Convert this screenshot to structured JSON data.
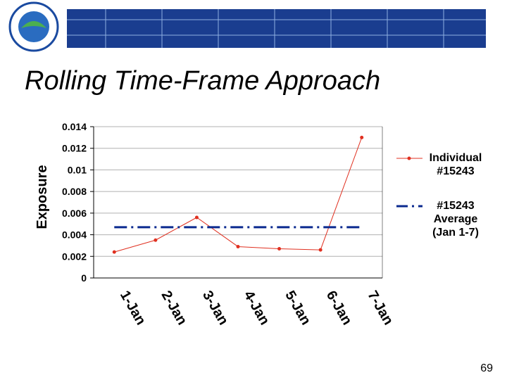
{
  "chart_data": {
    "type": "line",
    "title": "Rolling Time-Frame Approach",
    "y_label": "Exposure",
    "page_number": "69",
    "categories": [
      "1-Jan",
      "2-Jan",
      "3-Jan",
      "4-Jan",
      "5-Jan",
      "6-Jan",
      "7-Jan"
    ],
    "series": [
      {
        "name": "Individual #15243",
        "color": "#e03020",
        "values": [
          0.0024,
          0.0035,
          0.0056,
          0.0029,
          0.0027,
          0.0026,
          0.013
        ]
      },
      {
        "name": "#15243 Average (Jan 1-7)",
        "color": "#0b2a8f",
        "values": [
          0.0047,
          0.0047,
          0.0047,
          0.0047,
          0.0047,
          0.0047,
          0.0047
        ]
      }
    ],
    "ylim": [
      0,
      0.014
    ],
    "yticks": [
      0,
      0.002,
      0.004,
      0.006,
      0.008,
      0.01,
      0.012,
      0.014
    ],
    "grid": true
  }
}
